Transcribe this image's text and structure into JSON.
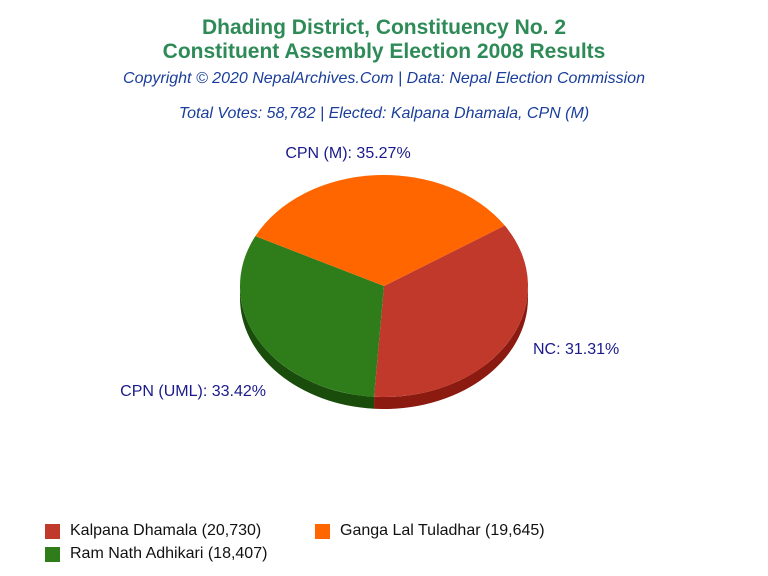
{
  "header": {
    "title_line1": "Dhading District, Constituency No. 2",
    "title_line2": "Constituent Assembly Election 2008 Results",
    "copyright": "Copyright © 2020 NepalArchives.Com | Data: Nepal Election Commission",
    "summary": "Total Votes: 58,782 | Elected: Kalpana Dhamala, CPN (M)"
  },
  "chart_data": {
    "type": "pie",
    "title": "Dhading District, Constituency No. 2 Constituent Assembly Election 2008 Results",
    "total_votes": 58782,
    "slices": [
      {
        "party": "CPN (M)",
        "candidate": "Kalpana Dhamala",
        "votes": 20730,
        "percent": 35.27,
        "color": "#c0392b",
        "side": "#8b1a10",
        "label": "CPN (M): 35.27%",
        "legend": "Kalpana Dhamala (20,730)"
      },
      {
        "party": "NC",
        "candidate": "Ram Nath Adhikari",
        "votes": 18407,
        "percent": 31.31,
        "color": "#2e7d1a",
        "side": "#1a4d0c",
        "label": "NC: 31.31%",
        "legend": "Ram Nath Adhikari (18,407)"
      },
      {
        "party": "CPN (UML)",
        "candidate": "Ganga Lal Tuladhar",
        "votes": 19645,
        "percent": 33.42,
        "color": "#ff6600",
        "side": "#a80d0d",
        "label": "CPN (UML): 33.42%",
        "legend": "Ganga Lal Tuladhar (19,645)"
      }
    ],
    "legend_order": [
      0,
      2,
      1
    ],
    "legend_placement": "bottom"
  }
}
